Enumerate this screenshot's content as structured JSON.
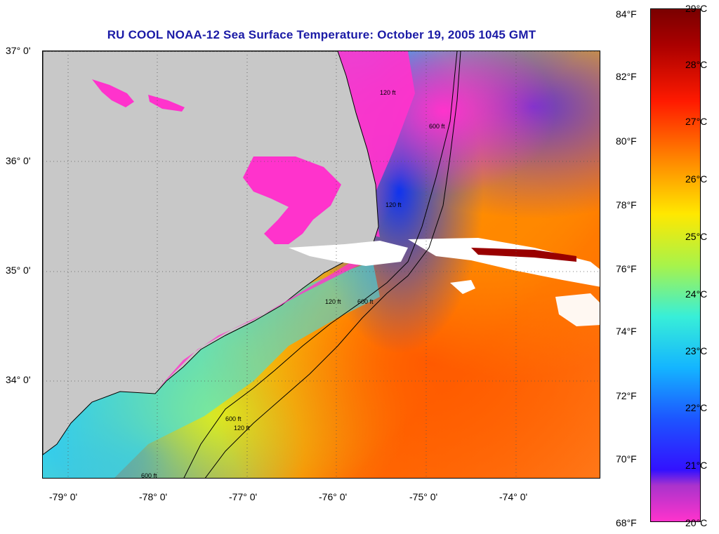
{
  "title": "RU COOL  NOAA-12  Sea Surface Temperature:  October 19, 2005 1045 GMT",
  "colors": {
    "title": "#1a1aa6",
    "land": "#c8c8c8",
    "shelf": "#ff33cc",
    "clouds": "#ffffff",
    "contours": "#000000"
  },
  "map": {
    "y_ticks": [
      "37° 0'",
      "36° 0'",
      "35° 0'",
      "34° 0'"
    ],
    "x_ticks": [
      "-79° 0'",
      "-78° 0'",
      "-77° 0'",
      "-76° 0'",
      "-75° 0'",
      "-74° 0'"
    ],
    "contour_labels": [
      "120 ft",
      "600 ft",
      "120 ft",
      "600 ft",
      "120 ft",
      "600 ft",
      "120 ft",
      "600 ft"
    ]
  },
  "colorbar": {
    "fahrenheit": [
      "84°F",
      "82°F",
      "80°F",
      "78°F",
      "76°F",
      "74°F",
      "72°F",
      "70°F",
      "68°F"
    ],
    "celsius": [
      "29°C",
      "28°C",
      "27°C",
      "26°C",
      "25°C",
      "24°C",
      "23°C",
      "22°C",
      "21°C",
      "20°C"
    ]
  }
}
